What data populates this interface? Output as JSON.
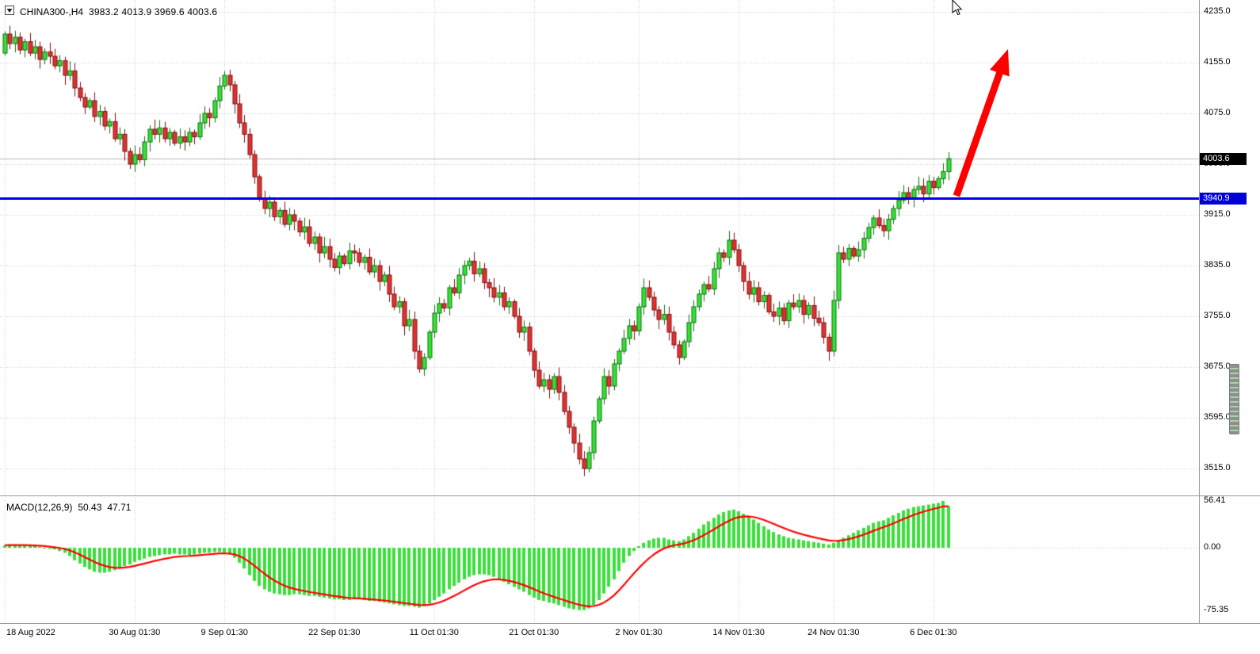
{
  "header": {
    "symbol_period": "CHINA300-,H4",
    "ohlc": "3983.2 4013.9 3969.6 4003.6"
  },
  "macd_header": {
    "label": "MACD(12,26,9)",
    "macd_value": "50.43",
    "signal_value": "47.71"
  },
  "price_badges": {
    "current": "4003.6",
    "line": "3940.9"
  },
  "colors": {
    "bull": "#35E235",
    "bull_border": "#0E6F0E",
    "bear": "#E03232",
    "bear_border": "#7E0E0E",
    "macd_hist": "#3ADF3A",
    "macd_signal": "#FF0000",
    "grid": "#C9C9C9",
    "bid_line": "#B9B9B9",
    "line_blue": "#0000E8",
    "badge_black": "#000000",
    "badge_blue": "#0000D8",
    "arrow_red": "#FF0000"
  },
  "chart_data": [
    {
      "type": "candlestick",
      "title": "CHINA300-,H4",
      "timeframe": "H4",
      "last_bar": {
        "open": 3983.2,
        "high": 4013.9,
        "low": 3969.6,
        "close": 4003.6
      },
      "open_equals_previous_close": true,
      "first_open": 4170,
      "closes": [
        4200,
        4185,
        4195,
        4175,
        4188,
        4170,
        4180,
        4160,
        4172,
        4165,
        4150,
        4158,
        4135,
        4142,
        4115,
        4100,
        4085,
        4095,
        4070,
        4078,
        4055,
        4062,
        4035,
        4042,
        4015,
        3995,
        4010,
        4002,
        4030,
        4050,
        4042,
        4052,
        4035,
        4045,
        4028,
        4038,
        4030,
        4045,
        4038,
        4060,
        4075,
        4068,
        4095,
        4118,
        4135,
        4120,
        4090,
        4060,
        4042,
        4010,
        3975,
        3940,
        3925,
        3935,
        3912,
        3922,
        3900,
        3915,
        3905,
        3888,
        3896,
        3870,
        3880,
        3855,
        3865,
        3845,
        3832,
        3850,
        3838,
        3858,
        3855,
        3840,
        3848,
        3825,
        3835,
        3810,
        3820,
        3790,
        3770,
        3778,
        3740,
        3750,
        3700,
        3672,
        3690,
        3730,
        3760,
        3775,
        3768,
        3800,
        3792,
        3820,
        3835,
        3842,
        3822,
        3830,
        3808,
        3800,
        3785,
        3792,
        3770,
        3778,
        3755,
        3730,
        3738,
        3700,
        3670,
        3645,
        3655,
        3640,
        3660,
        3635,
        3605,
        3580,
        3555,
        3530,
        3515,
        3540,
        3590,
        3625,
        3660,
        3645,
        3680,
        3700,
        3720,
        3740,
        3732,
        3770,
        3800,
        3785,
        3765,
        3750,
        3758,
        3730,
        3710,
        3690,
        3715,
        3745,
        3770,
        3790,
        3805,
        3798,
        3830,
        3855,
        3848,
        3875,
        3860,
        3835,
        3810,
        3790,
        3800,
        3778,
        3788,
        3762,
        3755,
        3768,
        3748,
        3776,
        3770,
        3780,
        3758,
        3772,
        3752,
        3745,
        3722,
        3700,
        3780,
        3855,
        3845,
        3862,
        3850,
        3860,
        3878,
        3895,
        3910,
        3898,
        3890,
        3908,
        3925,
        3938,
        3950,
        3942,
        3955,
        3960,
        3948,
        3968,
        3958,
        3972,
        3983.2,
        4003.6
      ],
      "wick_overrides": {
        "44": {
          "high": 4142
        },
        "116": {
          "low": 3503
        }
      },
      "price_axis": [
        4235.0,
        4155.0,
        4075.0,
        3995.0,
        3915.0,
        3835.0,
        3755.0,
        3675.0,
        3595.0,
        3515.0
      ],
      "time_axis": [
        {
          "label": "18 Aug 2022",
          "index": 0,
          "align": "left"
        },
        {
          "label": "30 Aug 01:30",
          "index": 26
        },
        {
          "label": "9 Sep 01:30",
          "index": 44
        },
        {
          "label": "22 Sep 01:30",
          "index": 66
        },
        {
          "label": "11 Oct 01:30",
          "index": 86
        },
        {
          "label": "21 Oct 01:30",
          "index": 106
        },
        {
          "label": "2 Nov 01:30",
          "index": 127
        },
        {
          "label": "14 Nov 01:30",
          "index": 147
        },
        {
          "label": "24 Nov 01:30",
          "index": 166
        },
        {
          "label": "6 Dec 01:30",
          "index": 186
        }
      ],
      "horizontal_line_price": 3940.9,
      "current_price": 4003.6,
      "ylim": [
        3472,
        4254
      ]
    },
    {
      "type": "bar",
      "title": "MACD(12,26,9)",
      "values": [
        3,
        4,
        4,
        3,
        3,
        2,
        2,
        1,
        0,
        -1,
        -2,
        -4,
        -6,
        -10,
        -15,
        -19,
        -23,
        -26,
        -29,
        -30,
        -30,
        -29,
        -27,
        -25,
        -22,
        -20,
        -17,
        -15,
        -13,
        -11,
        -10,
        -9,
        -8,
        -8,
        -7,
        -8,
        -8,
        -9,
        -8,
        -7,
        -6,
        -6,
        -5,
        -5,
        -6,
        -8,
        -12,
        -18,
        -25,
        -33,
        -40,
        -46,
        -50,
        -53,
        -55,
        -56,
        -57,
        -57,
        -56,
        -56,
        -57,
        -58,
        -58,
        -59,
        -60,
        -61,
        -62,
        -62,
        -63,
        -63,
        -62,
        -62,
        -63,
        -64,
        -64,
        -65,
        -66,
        -67,
        -68,
        -69,
        -70,
        -70,
        -71,
        -72,
        -70,
        -67,
        -63,
        -59,
        -55,
        -50,
        -46,
        -42,
        -38,
        -35,
        -33,
        -32,
        -32,
        -33,
        -35,
        -38,
        -41,
        -44,
        -47,
        -50,
        -53,
        -57,
        -60,
        -63,
        -64,
        -66,
        -67,
        -69,
        -71,
        -73,
        -74,
        -75,
        -75,
        -73,
        -69,
        -63,
        -55,
        -47,
        -38,
        -28,
        -18,
        -10,
        -4,
        2,
        6,
        9,
        11,
        12,
        12,
        10,
        9,
        8,
        10,
        14,
        18,
        23,
        28,
        32,
        36,
        40,
        43,
        45,
        46,
        44,
        41,
        38,
        34,
        30,
        26,
        22,
        19,
        16,
        14,
        12,
        11,
        10,
        9,
        8,
        7,
        6,
        5,
        4,
        6,
        9,
        12,
        15,
        18,
        21,
        24,
        27,
        30,
        32,
        33,
        36,
        39,
        42,
        45,
        47,
        49,
        50,
        51,
        52,
        53,
        54,
        56.41,
        50.43
      ],
      "signal_period": 9,
      "current": {
        "macd": 50.43,
        "signal": 47.71
      },
      "axis_labels": [
        56.41,
        0,
        -75.35
      ],
      "ylim": [
        -75.35,
        56.41
      ]
    }
  ]
}
